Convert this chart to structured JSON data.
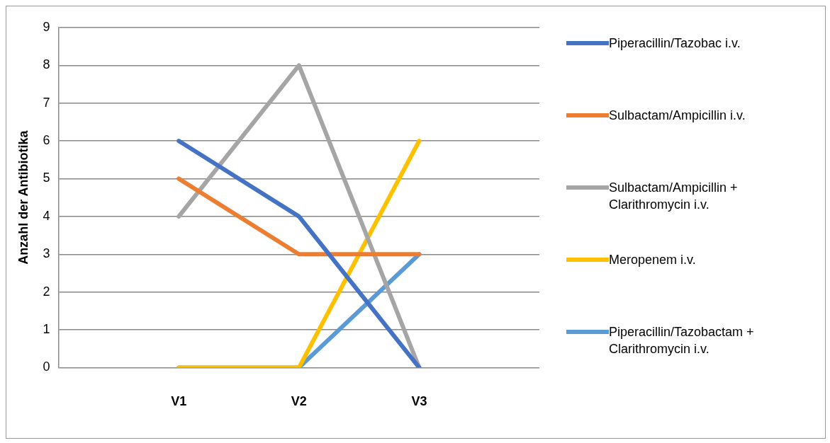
{
  "chart_data": {
    "type": "line",
    "ylabel": "Anzahl der Antibiotika",
    "categories": [
      null,
      "V1",
      "V2",
      "V3",
      null
    ],
    "series": [
      {
        "name": "Piperacillin/Tazobac i.v.",
        "color": "#4472c4",
        "values": [
          null,
          6,
          4,
          0,
          null
        ]
      },
      {
        "name": "Sulbactam/Ampicillin i.v.",
        "color": "#ed7d31",
        "values": [
          null,
          5,
          3,
          3,
          null
        ]
      },
      {
        "name": "Sulbactam/Ampicillin + Clarithromycin i.v.",
        "color": "#a5a5a5",
        "values": [
          null,
          4,
          8,
          0,
          null
        ]
      },
      {
        "name": "Meropenem i.v.",
        "color": "#ffc000",
        "values": [
          null,
          0,
          0,
          6,
          null
        ]
      },
      {
        "name": "Piperacillin/Tazobactam + Clarithromycin i.v.",
        "color": "#5b9bd5",
        "values": [
          null,
          0,
          0,
          3,
          null
        ]
      }
    ],
    "ylim": [
      0,
      9
    ],
    "yticks": [
      0,
      1,
      2,
      3,
      4,
      5,
      6,
      7,
      8,
      9
    ],
    "grid": "y",
    "legend": "right",
    "marker": "none",
    "line_style": "solid"
  }
}
